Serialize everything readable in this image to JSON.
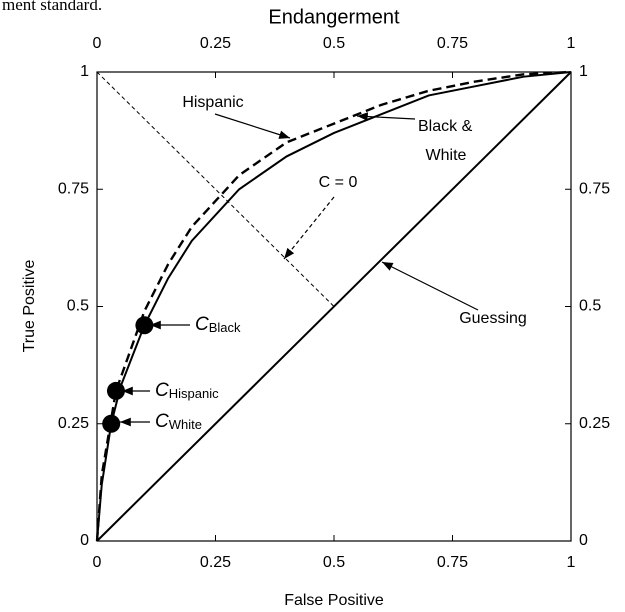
{
  "fragment": "ment standard.",
  "chart_data": {
    "type": "line",
    "title": "Endangerment",
    "x_label": "False Positive",
    "y_label": "True Positive",
    "xlim": [
      0,
      1
    ],
    "ylim": [
      0,
      1
    ],
    "xticks": [
      0,
      0.25,
      0.5,
      0.75,
      1
    ],
    "yticks": [
      0,
      0.25,
      0.5,
      0.75,
      1
    ],
    "x2ticks": [
      0,
      0.25,
      0.5,
      0.75,
      1
    ],
    "y2ticks": [
      0,
      0.25,
      0.5,
      0.75,
      1
    ],
    "series": [
      {
        "style": "solid",
        "color": "#000000",
        "x": [
          0,
          0.01,
          0.03,
          0.05,
          0.1,
          0.15,
          0.2,
          0.3,
          0.4,
          0.5,
          0.6,
          0.7,
          0.8,
          0.9,
          1
        ],
        "values": [
          0,
          0.12,
          0.25,
          0.33,
          0.46,
          0.56,
          0.64,
          0.75,
          0.82,
          0.87,
          0.91,
          0.95,
          0.97,
          0.99,
          1
        ]
      },
      {
        "style": "dashed",
        "color": "#000000",
        "x": [
          0,
          0.01,
          0.04,
          0.1,
          0.15,
          0.2,
          0.3,
          0.4,
          0.5,
          0.6,
          0.7,
          0.8,
          0.9,
          1
        ],
        "values": [
          0,
          0.14,
          0.32,
          0.49,
          0.59,
          0.67,
          0.78,
          0.85,
          0.89,
          0.93,
          0.96,
          0.98,
          0.995,
          1
        ]
      },
      {
        "style": "solid",
        "color": "#000000",
        "x": [
          0,
          1
        ],
        "values": [
          0,
          1
        ]
      },
      {
        "style": "thin-dashed",
        "color": "#000000",
        "x": [
          0,
          0.5
        ],
        "values": [
          1,
          0.5
        ]
      }
    ],
    "points": [
      {
        "x": 0.1,
        "y": 0.46,
        "label": "C",
        "subscript": "Black"
      },
      {
        "x": 0.04,
        "y": 0.32,
        "label": "C",
        "subscript": "Hispanic"
      },
      {
        "x": 0.03,
        "y": 0.25,
        "label": "C",
        "subscript": "White"
      }
    ],
    "annotations": [
      "Hispanic",
      "Black &",
      "White",
      "C = 0",
      "Guessing"
    ]
  }
}
